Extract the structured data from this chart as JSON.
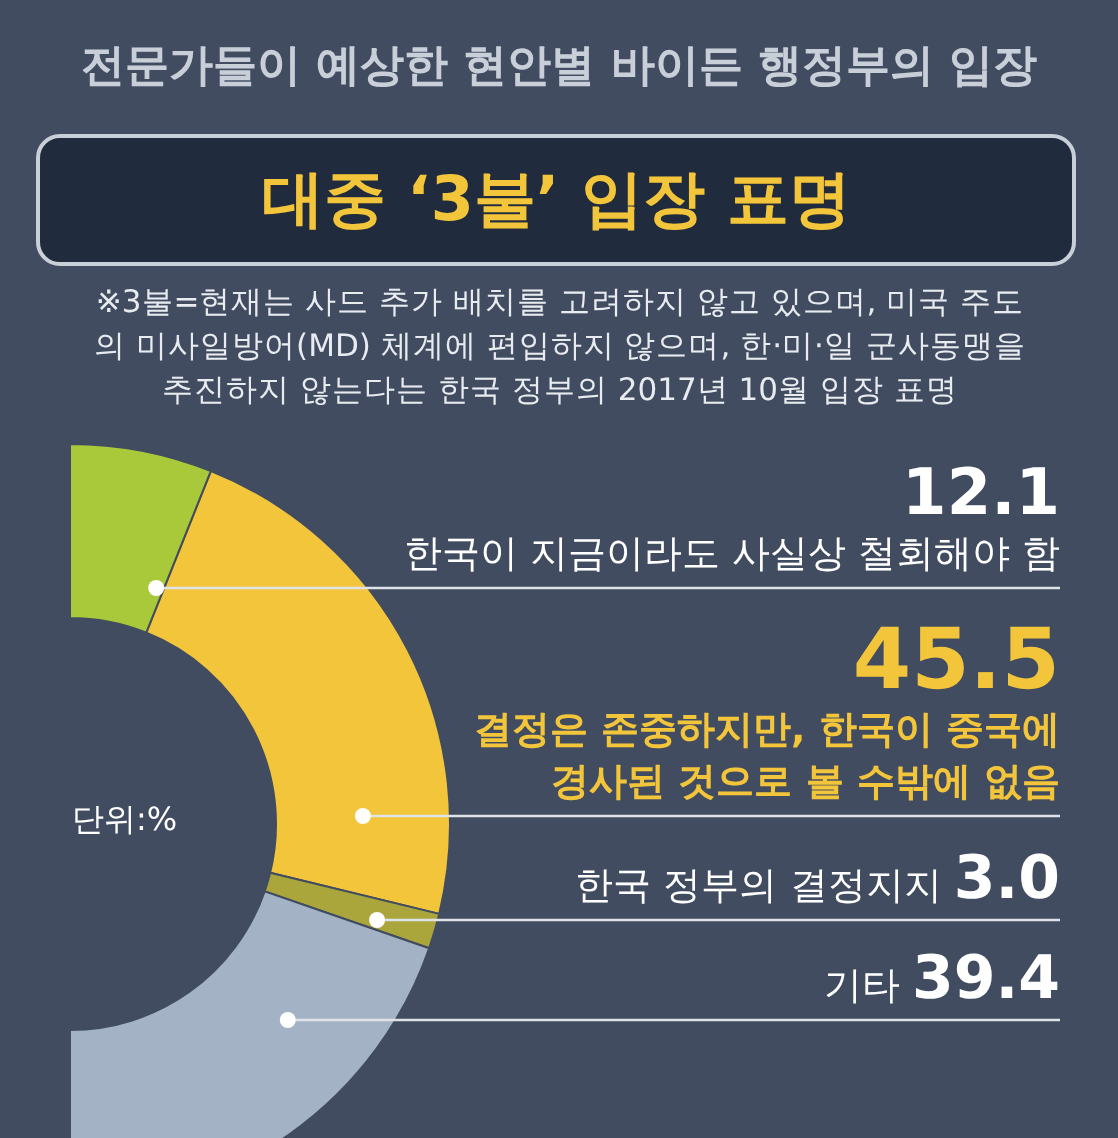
{
  "chart_data": {
    "type": "donut",
    "title": "전문가들이 예상한 현안별 바이든 행정부의 입장",
    "subtitle": "대중 ‘3불’ 입장 표명",
    "annotations": [
      "※3불=현재는 사드 추가 배치를 고려하지 않고 있으며, 미국 주도의 미사일방어(MD) 체계에 편입하지 않으며, 한·미·일 군사동맹을 추진하지 않는다는 한국 정부의 2017년 10월 입장 표명",
      "단위:%"
    ],
    "categories": [
      "한국이 지금이라도 사실상 철회해야 함",
      "결정은 존중하지만, 한국이 중국에 경사된 것으로 볼 수밖에 없음",
      "한국 정부의 결정지지",
      "기타"
    ],
    "values": [
      12.1,
      45.5,
      3.0,
      39.4
    ],
    "value_labels": [
      "12.1",
      "45.5",
      "3.0",
      "39.4"
    ],
    "colors": [
      "#a9c83a",
      "#f2c53a",
      "#aaa63c",
      "#a3b2c4"
    ]
  }
}
